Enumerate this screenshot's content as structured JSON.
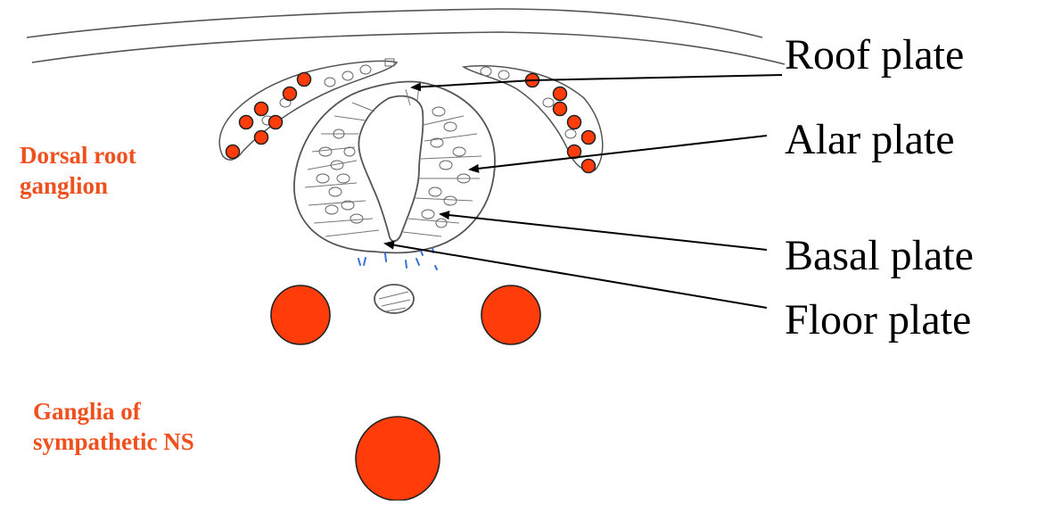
{
  "labels": {
    "roof_plate": "Roof plate",
    "alar_plate": "Alar plate",
    "basal_plate": "Basal plate",
    "floor_plate": "Floor plate"
  },
  "side_labels": {
    "dorsal_root_line1": "Dorsal root",
    "dorsal_root_line2": "ganglion",
    "sympathetic_line1": "Ganglia of",
    "sympathetic_line2": "sympathetic NS"
  },
  "colors": {
    "ganglion_fill": "#ff3c0a",
    "red_label": "#f0501e",
    "sketch_blue": "#3a6fd8"
  }
}
